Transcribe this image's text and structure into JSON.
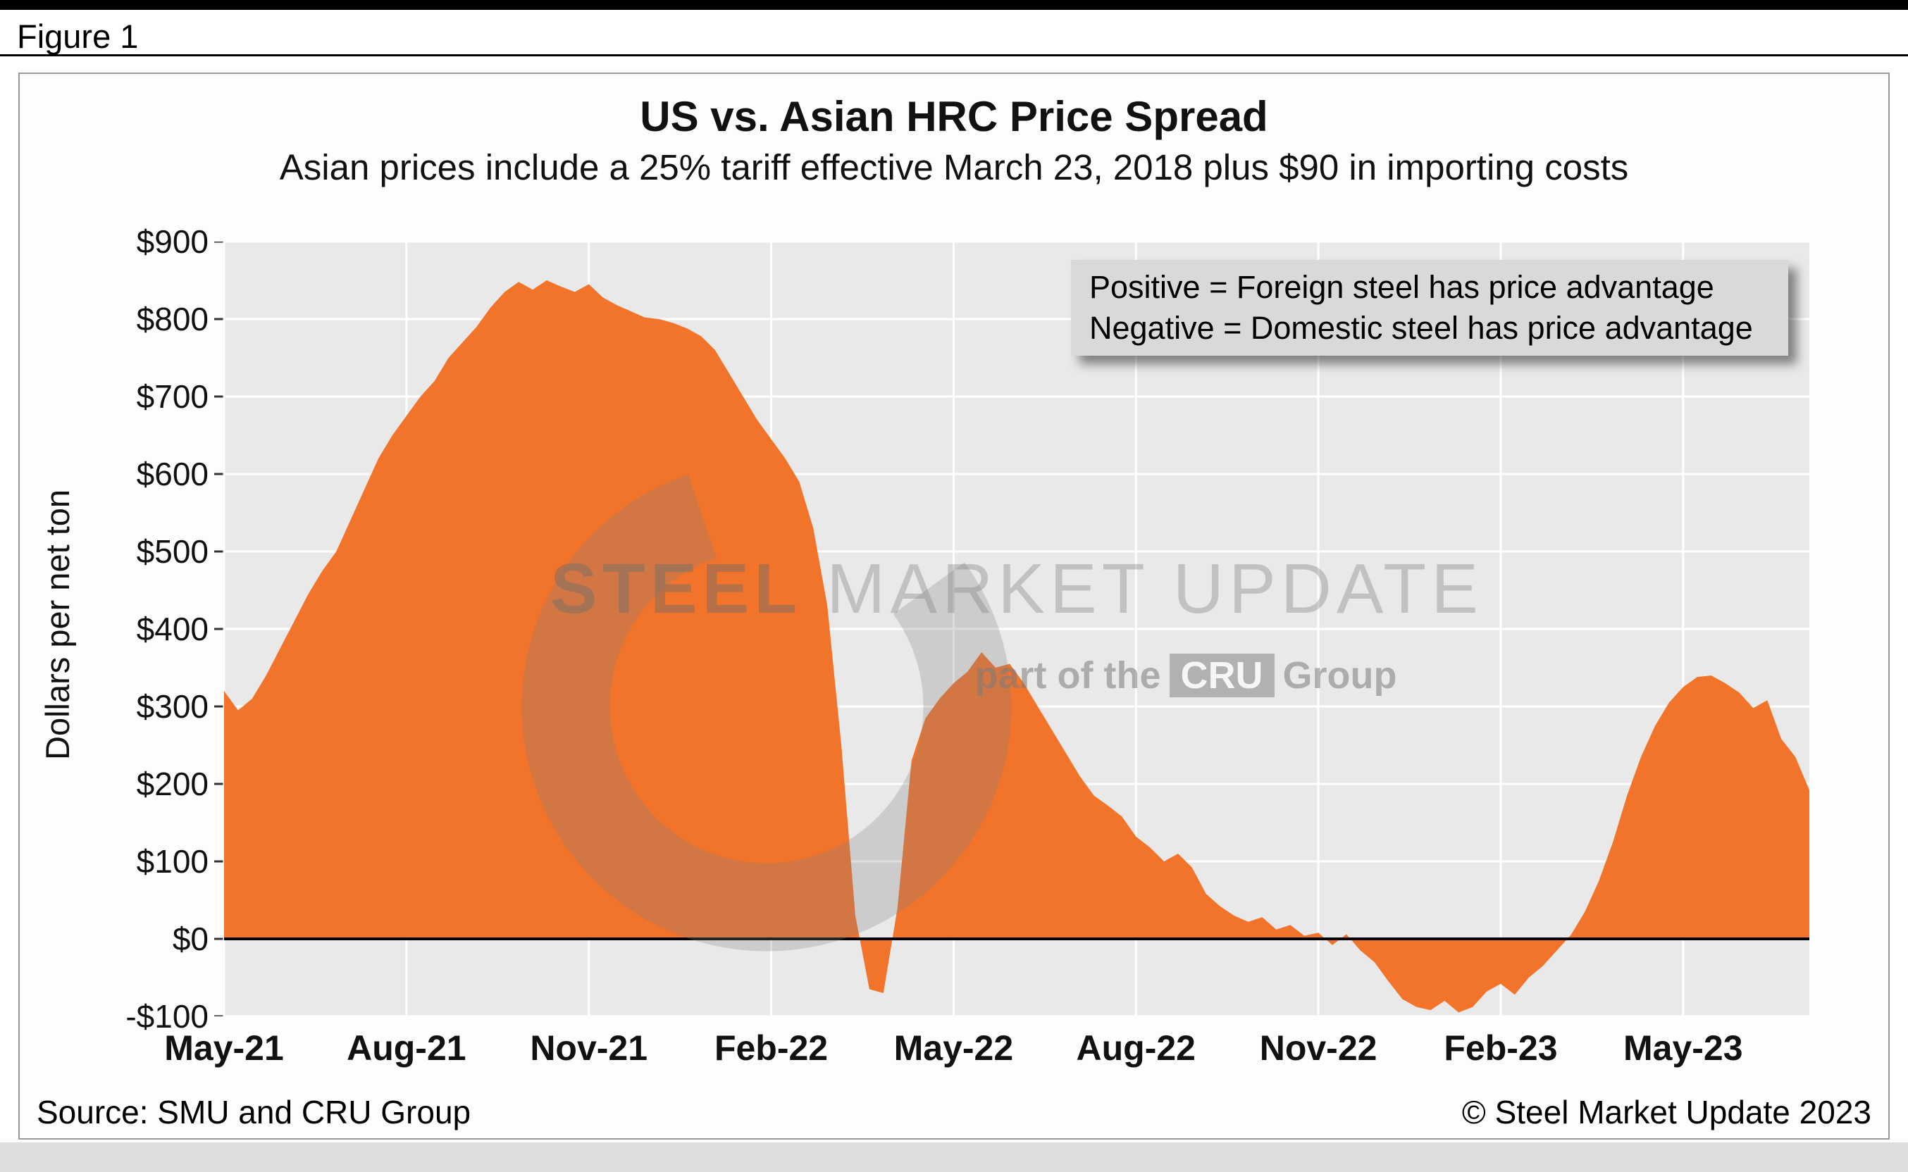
{
  "figure_label": "Figure 1",
  "annotation": {
    "line1": "Positive = Foreign steel has price advantage",
    "line2": "Negative = Domestic steel has price advantage"
  },
  "watermark": {
    "brand_bold": "STEEL",
    "brand_rest": " MARKET UPDATE",
    "tagline_prefix": "part of the",
    "tagline_logo": "CRU",
    "tagline_suffix": "Group"
  },
  "footer": {
    "source": "Source: SMU and CRU Group",
    "copyright": "© Steel Market Update 2023"
  },
  "chart_data": {
    "type": "area",
    "title": "US vs. Asian HRC Price Spread",
    "subtitle": "Asian prices include a 25% tariff effective March 23, 2018 plus $90 in importing costs",
    "ylabel": "Dollars per net ton",
    "ylim": [
      -100,
      900
    ],
    "ytick_step": 100,
    "ytick_labels": [
      "$900",
      "$800",
      "$700",
      "$600",
      "$500",
      "$400",
      "$300",
      "$200",
      "$100",
      "$0",
      "-$100"
    ],
    "x_unit": "weekly observations, May 2021 through June 2023",
    "xtick_labels": [
      "May-21",
      "Aug-21",
      "Nov-21",
      "Feb-22",
      "May-22",
      "Aug-22",
      "Nov-22",
      "Feb-23",
      "May-23"
    ],
    "xtick_indices": [
      0,
      13,
      26,
      39,
      52,
      65,
      78,
      91,
      104
    ],
    "values": [
      320,
      295,
      310,
      340,
      375,
      410,
      445,
      475,
      500,
      540,
      580,
      620,
      650,
      675,
      700,
      720,
      750,
      770,
      790,
      815,
      835,
      848,
      838,
      850,
      842,
      835,
      845,
      828,
      818,
      810,
      802,
      800,
      795,
      788,
      778,
      760,
      730,
      700,
      670,
      645,
      620,
      590,
      530,
      430,
      250,
      30,
      -65,
      -70,
      40,
      230,
      285,
      310,
      330,
      345,
      370,
      350,
      355,
      330,
      300,
      270,
      240,
      210,
      185,
      172,
      158,
      132,
      118,
      100,
      110,
      92,
      58,
      42,
      30,
      22,
      28,
      12,
      18,
      4,
      8,
      -8,
      6,
      -15,
      -30,
      -55,
      -78,
      -88,
      -92,
      -80,
      -95,
      -88,
      -68,
      -58,
      -72,
      -50,
      -35,
      -15,
      5,
      35,
      75,
      125,
      185,
      235,
      275,
      305,
      325,
      338,
      340,
      330,
      318,
      298,
      308,
      258,
      235,
      192
    ],
    "baseline": 0,
    "grid": true,
    "legend_position": "text box, top-right inside plot",
    "colors": {
      "area": "#F2742B",
      "plot_bg": "#E9E9E9",
      "grid": "#FFFFFF",
      "zero_line": "#000000",
      "annotation_bg": "#D9D9D9"
    }
  }
}
